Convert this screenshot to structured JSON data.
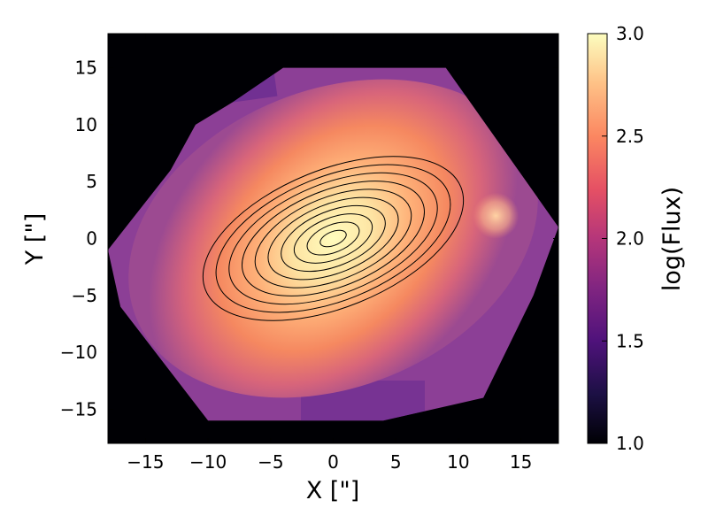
{
  "chart_data": {
    "type": "heatmap",
    "title": "",
    "xlabel": "X [\"]",
    "ylabel": "Y [\"]",
    "xlim": [
      -18,
      18
    ],
    "ylim": [
      -18,
      18
    ],
    "x_ticks": [
      -15,
      -10,
      -5,
      0,
      5,
      10,
      15
    ],
    "y_ticks": [
      -15,
      -10,
      -5,
      0,
      5,
      10,
      15
    ],
    "x_tick_labels": [
      "−15",
      "−10",
      "−5",
      "0",
      "5",
      "10",
      "15"
    ],
    "y_tick_labels": [
      "−15",
      "−10",
      "−5",
      "0",
      "5",
      "10",
      "15"
    ],
    "colormap": "magma",
    "background_color": "#000004",
    "colorbar": {
      "label": "log(Flux)",
      "range": [
        1.0,
        3.0
      ],
      "ticks": [
        1.0,
        1.5,
        2.0,
        2.5,
        3.0
      ],
      "tick_labels": [
        "1.0",
        "1.5",
        "2.0",
        "2.5",
        "3.0"
      ]
    },
    "field_of_view": {
      "shape": "hexagon",
      "vertices": [
        [
          -4,
          15
        ],
        [
          9,
          15
        ],
        [
          18,
          1
        ],
        [
          16,
          -5
        ],
        [
          12,
          -14
        ],
        [
          4,
          -16
        ],
        [
          -10,
          -16
        ],
        [
          -17,
          -6
        ],
        [
          -18,
          -1
        ],
        [
          -13,
          6
        ],
        [
          -11,
          10
        ],
        [
          -8,
          12
        ]
      ]
    },
    "galaxy": {
      "center": [
        0,
        0
      ],
      "peak_log_flux": 3.0,
      "position_angle_deg": 22,
      "axis_ratio": 0.55,
      "edge_log_flux": 1.8
    },
    "secondary_source": {
      "center": [
        13,
        2
      ],
      "peak_log_flux": 2.75
    },
    "contours": {
      "center": [
        0,
        0
      ],
      "count": 10,
      "semi_major_axes": [
        1,
        2.2,
        3.3,
        4.4,
        5.5,
        6.6,
        7.7,
        8.8,
        9.9,
        8.9
      ],
      "axis_ratio": 0.55,
      "position_angle_deg": 22
    }
  }
}
